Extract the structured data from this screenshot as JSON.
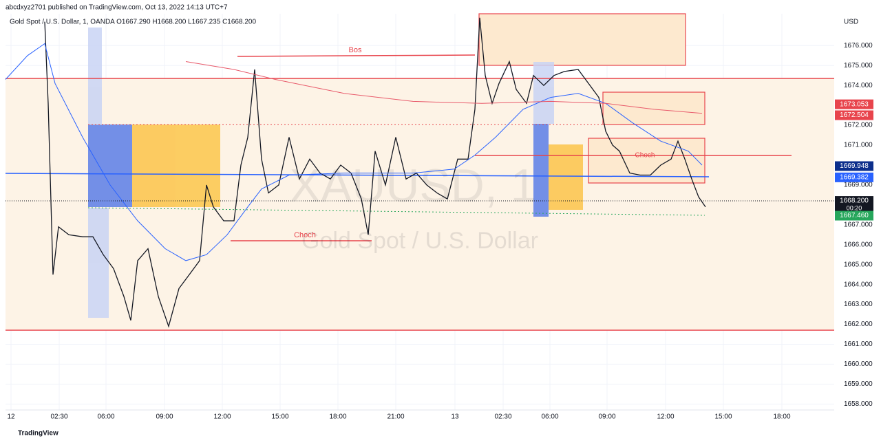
{
  "header": {
    "published": "abcdxyz2701 published on TradingView.com, Oct 13, 2022 14:13 UTC+7",
    "brand": "TradingView"
  },
  "chart_data": {
    "type": "line",
    "title": "Gold Spot / U.S. Dollar, 1, OANDA  O1667.290  H1668.200  L1667.235  C1668.200",
    "watermark": "XAUUSD, 1",
    "watermark_sub": "Gold Spot / U.S. Dollar",
    "y_axis_label": "USD",
    "xlim": [
      0,
      1204
    ],
    "ylim": [
      1657.7,
      1677.6
    ],
    "xticks": [
      {
        "value": 8,
        "label": "12"
      },
      {
        "value": 78,
        "label": "02:30"
      },
      {
        "value": 146,
        "label": "06:00"
      },
      {
        "value": 231,
        "label": "09:00"
      },
      {
        "value": 315,
        "label": "12:00"
      },
      {
        "value": 399,
        "label": "15:00"
      },
      {
        "value": 483,
        "label": "18:00"
      },
      {
        "value": 567,
        "label": "21:00"
      },
      {
        "value": 653,
        "label": "13"
      },
      {
        "value": 723,
        "label": "02:30"
      },
      {
        "value": 791,
        "label": "06:00"
      },
      {
        "value": 874,
        "label": "09:00"
      },
      {
        "value": 959,
        "label": "12:00"
      },
      {
        "value": 1043,
        "label": "15:00"
      },
      {
        "value": 1128,
        "label": "18:00"
      }
    ],
    "yticks": [
      {
        "value": 1658,
        "label": "1658.000"
      },
      {
        "value": 1659,
        "label": "1659.000"
      },
      {
        "value": 1660,
        "label": "1660.000"
      },
      {
        "value": 1661,
        "label": "1661.000"
      },
      {
        "value": 1662,
        "label": "1662.000"
      },
      {
        "value": 1663,
        "label": "1663.000"
      },
      {
        "value": 1664,
        "label": "1664.000"
      },
      {
        "value": 1665,
        "label": "1665.000"
      },
      {
        "value": 1666,
        "label": "1666.000"
      },
      {
        "value": 1667,
        "label": "1667.000"
      },
      {
        "value": 1668,
        "label": "1668.000"
      },
      {
        "value": 1669,
        "label": "1669.000"
      },
      {
        "value": 1670,
        "label": "1670.000"
      },
      {
        "value": 1671,
        "label": "1671.000"
      },
      {
        "value": 1672,
        "label": "1672.000"
      },
      {
        "value": 1673,
        "label": "1673.000"
      },
      {
        "value": 1674,
        "label": "1674.000"
      },
      {
        "value": 1675,
        "label": "1675.000"
      },
      {
        "value": 1676,
        "label": "1676.000"
      }
    ],
    "series": [
      {
        "color": "#131722",
        "x": [
          57,
          62,
          69,
          77,
          92,
          112,
          127,
          142,
          157,
          172,
          182,
          192,
          207,
          222,
          237,
          252,
          267,
          282,
          292,
          302,
          317,
          332,
          342,
          352,
          362,
          372,
          382,
          397,
          412,
          427,
          442,
          457,
          472,
          487,
          502,
          517,
          527,
          537,
          552,
          567,
          582,
          597,
          612,
          627,
          642,
          657,
          672,
          682,
          689,
          697,
          707,
          717,
          732,
          742,
          757,
          767,
          782,
          797,
          812,
          832,
          847,
          862,
          872,
          882,
          892,
          907,
          922,
          937,
          952,
          967,
          977,
          987,
          997,
          1007,
          1017
        ],
        "values": [
          1677.2,
          1673.1,
          1664.5,
          1666.9,
          1666.5,
          1666.4,
          1666.4,
          1665.5,
          1664.8,
          1663.4,
          1662.2,
          1665.2,
          1665.8,
          1663.4,
          1661.9,
          1663.8,
          1664.5,
          1665.2,
          1669.0,
          1667.9,
          1667.2,
          1667.2,
          1670.0,
          1671.4,
          1674.8,
          1670.3,
          1668.6,
          1669.0,
          1671.4,
          1669.3,
          1670.3,
          1669.6,
          1669.3,
          1670.0,
          1669.6,
          1668.3,
          1666.5,
          1670.7,
          1669.0,
          1671.4,
          1669.3,
          1669.6,
          1669.0,
          1668.6,
          1668.3,
          1670.3,
          1670.3,
          1672.8,
          1677.4,
          1674.5,
          1673.1,
          1674.1,
          1675.2,
          1673.8,
          1673.1,
          1674.5,
          1674.0,
          1674.5,
          1674.7,
          1674.8,
          1674.1,
          1673.4,
          1671.7,
          1671.0,
          1670.7,
          1669.6,
          1669.5,
          1669.5,
          1670.0,
          1670.3,
          1671.2,
          1670.3,
          1669.3,
          1668.4,
          1667.9
        ]
      },
      {
        "color": "#2962ff",
        "x": [
          0,
          32,
          57,
          72,
          112,
          152,
          192,
          232,
          262,
          292,
          322,
          352,
          372,
          412,
          492,
          592,
          652,
          682,
          712,
          752,
          792,
          832,
          872,
          912,
          952,
          992,
          1012
        ],
        "values": [
          1674.3,
          1675.5,
          1676.1,
          1674.1,
          1671.4,
          1669.0,
          1667.2,
          1665.8,
          1665.2,
          1665.5,
          1666.5,
          1667.9,
          1668.8,
          1669.5,
          1669.6,
          1669.6,
          1669.8,
          1670.5,
          1671.4,
          1672.8,
          1673.4,
          1673.6,
          1673.1,
          1672.1,
          1671.2,
          1670.7,
          1670.0
        ]
      },
      {
        "color": "#e8596a",
        "x": [
          262,
          332,
          392,
          492,
          592,
          692,
          792,
          872,
          942,
          1012
        ],
        "values": [
          1675.2,
          1674.8,
          1674.3,
          1673.6,
          1673.2,
          1673.1,
          1673.2,
          1673.1,
          1672.8,
          1672.6
        ]
      }
    ],
    "annotations": [
      "Bos",
      "Choch",
      "Choch"
    ],
    "price_labels": [
      {
        "value": 1673.053,
        "color": "#e8444c"
      },
      {
        "value": 1672.504,
        "color": "#e8444c"
      },
      {
        "value": 1669.948,
        "color": "#0d2f8c"
      },
      {
        "value": 1669.382,
        "color": "#2962ff"
      },
      {
        "value": 1668.2,
        "label": "1668.200",
        "color": "#131722",
        "countdown": "00:20"
      },
      {
        "value": 1667.46,
        "label": "1667.460",
        "color": "#26a65b"
      }
    ]
  }
}
